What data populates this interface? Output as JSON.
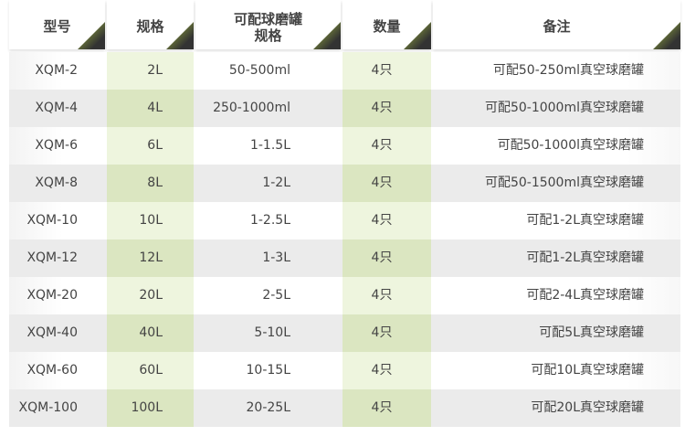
{
  "table": {
    "header": [
      "型号",
      "规格",
      [
        "可配球磨罐",
        "规格"
      ],
      "数量",
      "备注"
    ],
    "rows": [
      [
        "XQM-2",
        "2L",
        "50-500ml",
        "4只",
        "可配50-250ml真空球磨罐"
      ],
      [
        "XQM-4",
        "4L",
        "250-1000ml",
        "4只",
        "可配50-1000ml真空球磨罐"
      ],
      [
        "XQM-6",
        "6L",
        "1-1.5L",
        "4只",
        "可配50-1000l真空球磨罐"
      ],
      [
        "XQM-8",
        "8L",
        "1-2L",
        "4只",
        "可配50-1500ml真空球磨罐"
      ],
      [
        "XQM-10",
        "10L",
        "1-2.5L",
        "4只",
        "可配1-2L真空球磨罐"
      ],
      [
        "XQM-12",
        "12L",
        "1-3L",
        "4只",
        "可配1-2L真空球磨罐"
      ],
      [
        "XQM-20",
        "20L",
        "2-5L",
        "4只",
        "可配2-4L真空球磨罐"
      ],
      [
        "XQM-40",
        "40L",
        "5-10L",
        "4只",
        "可配5L真空球磨罐"
      ],
      [
        "XQM-60",
        "60L",
        "10-15L",
        "4只",
        "可配10L真空球磨罐"
      ],
      [
        "XQM-100",
        "100L",
        "20-25L",
        "4只",
        "可配20L真空球磨罐"
      ]
    ]
  }
}
